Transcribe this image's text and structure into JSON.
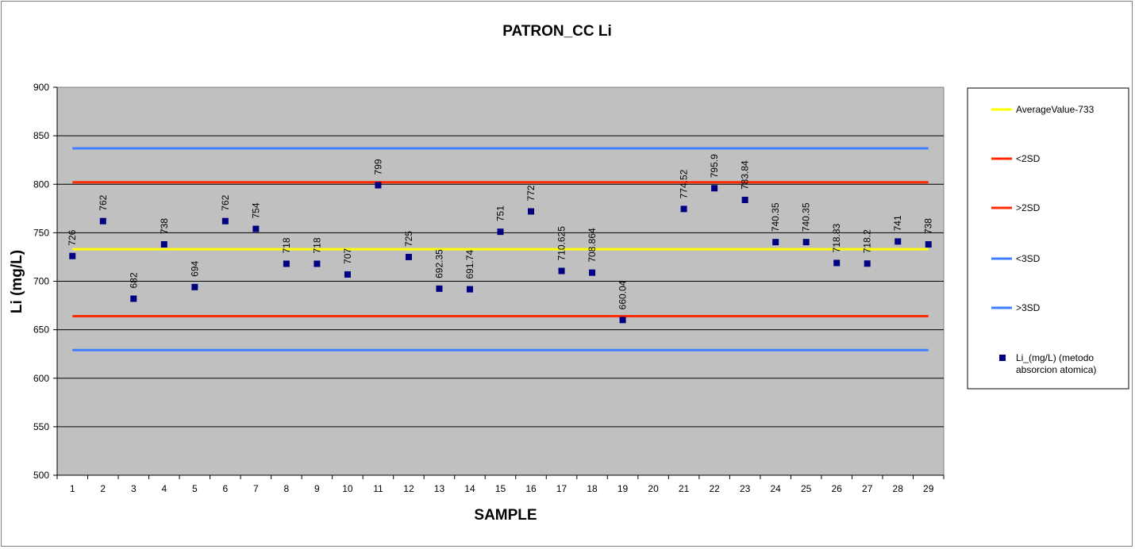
{
  "chart_data": {
    "type": "scatter",
    "title": "PATRON_CC Li",
    "xlabel": "SAMPLE",
    "ylabel": "Li (mg/L)",
    "ylim": [
      500,
      900
    ],
    "yticks": [
      500,
      550,
      600,
      650,
      700,
      750,
      800,
      850,
      900
    ],
    "categories": [
      "1",
      "2",
      "3",
      "4",
      "5",
      "6",
      "7",
      "8",
      "9",
      "10",
      "11",
      "12",
      "13",
      "14",
      "15",
      "16",
      "17",
      "18",
      "19",
      "20",
      "21",
      "22",
      "23",
      "24",
      "25",
      "26",
      "27",
      "28",
      "29"
    ],
    "grid": "horizontal",
    "legend_position": "right",
    "colors": {
      "plot_background": "#c0c0c0",
      "gridline": "#000000",
      "average": "#ffff00",
      "sd2": "#ff2a00",
      "sd3": "#3f7fff",
      "marker": "#000080"
    },
    "reference_lines": [
      {
        "name": "AverageValue-733",
        "value": 733,
        "color": "#ffff00"
      },
      {
        "name": "<2SD",
        "value": 664,
        "color": "#ff2a00"
      },
      {
        "name": ">2SD",
        "value": 802,
        "color": "#ff2a00"
      },
      {
        "name": "<3SD",
        "value": 629,
        "color": "#3f7fff"
      },
      {
        "name": ">3SD",
        "value": 837,
        "color": "#3f7fff"
      }
    ],
    "series": [
      {
        "name": "Li_(mg/L) (metodo absorcion atomica)",
        "marker": "square",
        "points": [
          {
            "x": "1",
            "y": 726,
            "label": "726"
          },
          {
            "x": "2",
            "y": 762,
            "label": "762"
          },
          {
            "x": "3",
            "y": 682,
            "label": "682"
          },
          {
            "x": "4",
            "y": 738,
            "label": "738"
          },
          {
            "x": "5",
            "y": 694,
            "label": "694"
          },
          {
            "x": "6",
            "y": 762,
            "label": "762"
          },
          {
            "x": "7",
            "y": 754,
            "label": "754"
          },
          {
            "x": "8",
            "y": 718,
            "label": "718"
          },
          {
            "x": "9",
            "y": 718,
            "label": "718"
          },
          {
            "x": "10",
            "y": 707,
            "label": "707"
          },
          {
            "x": "11",
            "y": 799,
            "label": "799"
          },
          {
            "x": "12",
            "y": 725,
            "label": "725"
          },
          {
            "x": "13",
            "y": 692.35,
            "label": "692.35"
          },
          {
            "x": "14",
            "y": 691.74,
            "label": "691.74"
          },
          {
            "x": "15",
            "y": 751,
            "label": "751"
          },
          {
            "x": "16",
            "y": 772,
            "label": "772"
          },
          {
            "x": "17",
            "y": 710.625,
            "label": "710.625"
          },
          {
            "x": "18",
            "y": 708.864,
            "label": "708.864"
          },
          {
            "x": "19",
            "y": 660.04,
            "label": "660.04"
          },
          {
            "x": "21",
            "y": 774.52,
            "label": "774.52"
          },
          {
            "x": "22",
            "y": 795.9,
            "label": "795.9"
          },
          {
            "x": "23",
            "y": 783.84,
            "label": "783.84"
          },
          {
            "x": "24",
            "y": 740.35,
            "label": "740.35"
          },
          {
            "x": "25",
            "y": 740.35,
            "label": "740.35"
          },
          {
            "x": "26",
            "y": 718.83,
            "label": "718.83"
          },
          {
            "x": "27",
            "y": 718.2,
            "label": "718.2"
          },
          {
            "x": "28",
            "y": 741,
            "label": "741"
          },
          {
            "x": "29",
            "y": 738,
            "label": "738"
          }
        ]
      }
    ],
    "legend": [
      {
        "label": "AverageValue-733",
        "type": "line",
        "color": "#ffff00"
      },
      {
        "label": "<2SD",
        "type": "line",
        "color": "#ff2a00"
      },
      {
        "label": ">2SD",
        "type": "line",
        "color": "#ff2a00"
      },
      {
        "label": "<3SD",
        "type": "line",
        "color": "#3f7fff"
      },
      {
        "label": ">3SD",
        "type": "line",
        "color": "#3f7fff"
      },
      {
        "label": "Li_(mg/L) (metodo absorcion atomica)",
        "label_lines": [
          "Li_(mg/L) (metodo",
          "absorcion atomica)"
        ],
        "type": "marker",
        "color": "#000080"
      }
    ]
  }
}
